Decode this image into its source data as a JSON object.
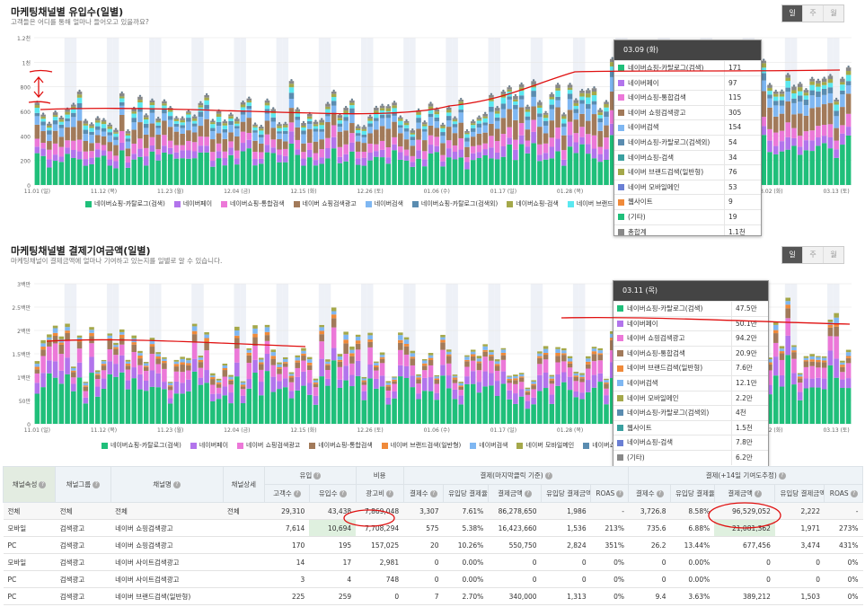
{
  "colors": {
    "c1": "#1fbf7a",
    "c2": "#b274ec",
    "c3": "#ec78d8",
    "c4": "#a27a5a",
    "c5": "#7fb7f2",
    "c6": "#5a8cb0",
    "c7": "#5ad6dc",
    "c8": "#a4a84a",
    "c9": "#6a7fd4",
    "c10": "#f08a3a",
    "c11": "#3aa0a0",
    "c12": "#888888",
    "c13": "#5ae8f0"
  },
  "periods": [
    "일",
    "주",
    "월"
  ],
  "chart1": {
    "title": "마케팅채널별 유입수(일별)",
    "subtitle": "고객들은 어디를 통해 얼마나 들어오고 있을까요?",
    "y_ticks": [
      "1.2천",
      "1천",
      "800",
      "600",
      "400",
      "200",
      "0"
    ],
    "x_ticks": [
      "11.01 (일)",
      "11.12 (목)",
      "11.23 (월)",
      "12.04 (금)",
      "12.15 (화)",
      "12.26 (토)",
      "01.06 (수)",
      "01.17 (일)",
      "01.28 (목)",
      "02.08 (월)",
      "02.19 (금)",
      "03.02 (화)",
      "03.13 (토)"
    ],
    "legend": [
      "네이버쇼핑-카탈로그(검색)",
      "네이버페이",
      "네이버쇼핑-통합검색",
      "네이버 쇼핑검색광고",
      "네이버검색",
      "네이버쇼핑-카탈로그(검색외)",
      "네이버쇼핑-검색",
      "네이버 브랜드검색(일반형)",
      "합계"
    ],
    "tooltip": {
      "date": "03.09 (화)",
      "rows": [
        {
          "name": "네이버쇼핑-카탈로그(검색)",
          "value": "171"
        },
        {
          "name": "네이버페이",
          "value": "97"
        },
        {
          "name": "네이버쇼핑-통합검색",
          "value": "115"
        },
        {
          "name": "네이버 쇼핑검색광고",
          "value": "305"
        },
        {
          "name": "네이버검색",
          "value": "154"
        },
        {
          "name": "네이버쇼핑-카탈로그(검색외)",
          "value": "54"
        },
        {
          "name": "네이버쇼핑-검색",
          "value": "34"
        },
        {
          "name": "네이버 브랜드검색(일반형)",
          "value": "76"
        },
        {
          "name": "네이버 모바일메인",
          "value": "53"
        },
        {
          "name": "웹사이트",
          "value": "9"
        },
        {
          "name": "(기타)",
          "value": "19"
        },
        {
          "name": "총합계",
          "value": "1.1천"
        }
      ]
    }
  },
  "chart2": {
    "title": "마케팅채널별 결제기여금액(일별)",
    "subtitle": "마케팅채널이 결제금액에 얼마나 기여하고 있는지를 일별로 알 수 있습니다.",
    "y_ticks": [
      "3백만",
      "2.5백만",
      "2백만",
      "1.5백만",
      "1백만",
      "50만",
      "0"
    ],
    "x_ticks": [
      "11.01 (일)",
      "11.12 (목)",
      "11.23 (월)",
      "12.04 (금)",
      "12.15 (화)",
      "12.26 (토)",
      "01.06 (수)",
      "01.17 (일)",
      "01.28 (목)",
      "02.08 (월)",
      "02.19 (금)",
      "03.02 (화)",
      "03.13 (토)"
    ],
    "legend": [
      "네이버쇼핑-카탈로그(검색)",
      "네이버페이",
      "네이버 쇼핑검색광고",
      "네이버쇼핑-통합검색",
      "네이버 브랜드검색(일반형)",
      "네이버검색",
      "네이버 모바일메인",
      "네이버쇼핑-카탈로그(검색외)"
    ],
    "tooltip": {
      "date": "03.11 (목)",
      "rows": [
        {
          "name": "네이버쇼핑-카탈로그(검색)",
          "value": "47.5만"
        },
        {
          "name": "네이버페이",
          "value": "50.1만"
        },
        {
          "name": "네이버 쇼핑검색광고",
          "value": "94.2만"
        },
        {
          "name": "네이버쇼핑-통합검색",
          "value": "20.9만"
        },
        {
          "name": "네이버 브랜드검색(일반형)",
          "value": "7.6만"
        },
        {
          "name": "네이버검색",
          "value": "12.1만"
        },
        {
          "name": "네이버 모바일메인",
          "value": "2.2만"
        },
        {
          "name": "네이버쇼핑-카탈로그(검색외)",
          "value": "4천"
        },
        {
          "name": "웹사이트",
          "value": "1.5천"
        },
        {
          "name": "네이버쇼핑-검색",
          "value": "7.8만"
        },
        {
          "name": "(기타)",
          "value": "6.2만"
        }
      ]
    }
  },
  "table": {
    "group_headers": {
      "channel_attr": "채널속성",
      "channel_group": "채널그룹",
      "channel_name": "채널명",
      "channel_detail": "채널상세",
      "inflow": "유입",
      "cost": "비용",
      "pay_last": "결제(마지막클릭 기준)",
      "pay_14": "결제(+14일 기여도추정)"
    },
    "sub_headers": [
      "고객수",
      "유입수",
      "광고비",
      "결제수",
      "유입당 결제율",
      "결제금액",
      "유입당 결제금액",
      "ROAS",
      "결제수",
      "유입당 결제율",
      "결제금액",
      "유입당 결제금액",
      "ROAS"
    ],
    "rows": [
      [
        "전체",
        "전체",
        "전체",
        "전체",
        "29,310",
        "43,438",
        "7,869,048",
        "3,307",
        "7.61%",
        "86,278,650",
        "1,986",
        "-",
        "3,726.8",
        "8.58%",
        "96,529,052",
        "2,222",
        "-"
      ],
      [
        "모바일",
        "검색광고",
        "네이버 쇼핑검색광고",
        "",
        "7,614",
        "10,694",
        "7,708,294",
        "575",
        "5.38%",
        "16,423,660",
        "1,536",
        "213%",
        "735.6",
        "6.88%",
        "21,081,362",
        "1,971",
        "273%"
      ],
      [
        "PC",
        "검색광고",
        "네이버 쇼핑검색광고",
        "",
        "170",
        "195",
        "157,025",
        "20",
        "10.26%",
        "550,750",
        "2,824",
        "351%",
        "26.2",
        "13.44%",
        "677,456",
        "3,474",
        "431%"
      ],
      [
        "모바일",
        "검색광고",
        "네이버 사이트검색광고",
        "",
        "14",
        "17",
        "2,981",
        "0",
        "0.00%",
        "0",
        "0",
        "0%",
        "0",
        "0.00%",
        "0",
        "0",
        "0%"
      ],
      [
        "PC",
        "검색광고",
        "네이버 사이트검색광고",
        "",
        "3",
        "4",
        "748",
        "0",
        "0.00%",
        "0",
        "0",
        "0%",
        "0",
        "0.00%",
        "0",
        "0",
        "0%"
      ],
      [
        "PC",
        "검색광고",
        "네이버 브랜드검색(일반형)",
        "",
        "225",
        "259",
        "0",
        "7",
        "2.70%",
        "340,000",
        "1,313",
        "0%",
        "9.4",
        "3.63%",
        "389,212",
        "1,503",
        "0%"
      ]
    ]
  }
}
